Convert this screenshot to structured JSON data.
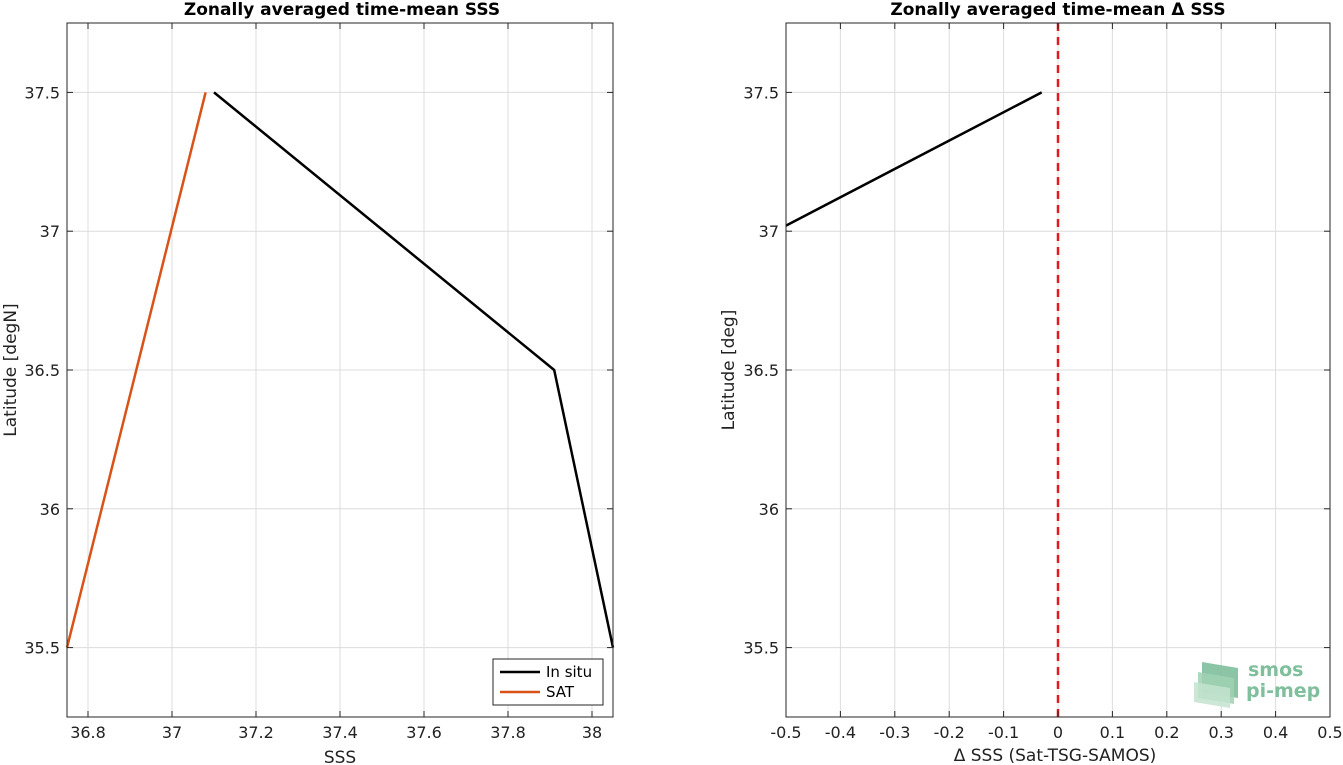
{
  "chart_data": [
    {
      "type": "line",
      "title": "Zonally averaged time-mean SSS",
      "xlabel": "SSS",
      "ylabel": "Latitude [degN]",
      "xlim": [
        36.75,
        38.05
      ],
      "ylim": [
        35.25,
        37.75
      ],
      "x_ticks": [
        36.8,
        37,
        37.2,
        37.4,
        37.6,
        37.8,
        38
      ],
      "x_tick_labels": [
        "36.8",
        "37",
        "37.2",
        "37.4",
        "37.6",
        "37.8",
        "38"
      ],
      "y_ticks": [
        35.5,
        36,
        36.5,
        37,
        37.5
      ],
      "y_tick_labels": [
        "35.5",
        "36",
        "36.5",
        "37",
        "37.5"
      ],
      "grid": true,
      "legend": "bottom-right",
      "series": [
        {
          "name": "In situ",
          "color": "#000000",
          "x": [
            37.1,
            37.91,
            38.05
          ],
          "y": [
            37.5,
            36.5,
            35.5
          ]
        },
        {
          "name": "SAT",
          "color": "#d95319",
          "x": [
            37.08,
            36.75
          ],
          "y": [
            37.5,
            35.5
          ]
        }
      ]
    },
    {
      "type": "line",
      "title": "Zonally averaged time-mean Δ SSS",
      "xlabel": "Δ SSS (Sat-TSG-SAMOS)",
      "ylabel": "Latitude [deg]",
      "xlim": [
        -0.5,
        0.5
      ],
      "ylim": [
        35.25,
        37.75
      ],
      "x_ticks": [
        -0.5,
        -0.4,
        -0.3,
        -0.2,
        -0.1,
        0,
        0.1,
        0.2,
        0.3,
        0.4,
        0.5
      ],
      "x_tick_labels": [
        "-0.5",
        "-0.4",
        "-0.3",
        "-0.2",
        "-0.1",
        "0",
        "0.1",
        "0.2",
        "0.3",
        "0.4",
        "0.5"
      ],
      "y_ticks": [
        35.5,
        36,
        36.5,
        37,
        37.5
      ],
      "y_tick_labels": [
        "35.5",
        "36",
        "36.5",
        "37",
        "37.5"
      ],
      "grid": true,
      "reference_line": {
        "x": 0,
        "color": "#e41a1c",
        "style": "dashed"
      },
      "series": [
        {
          "color": "#000000",
          "x": [
            -0.5,
            -0.03
          ],
          "y": [
            37.02,
            37.5
          ]
        }
      ]
    }
  ],
  "logo": {
    "line1": "smos",
    "line2": "pi-mep",
    "color": "#7fbf9b"
  }
}
